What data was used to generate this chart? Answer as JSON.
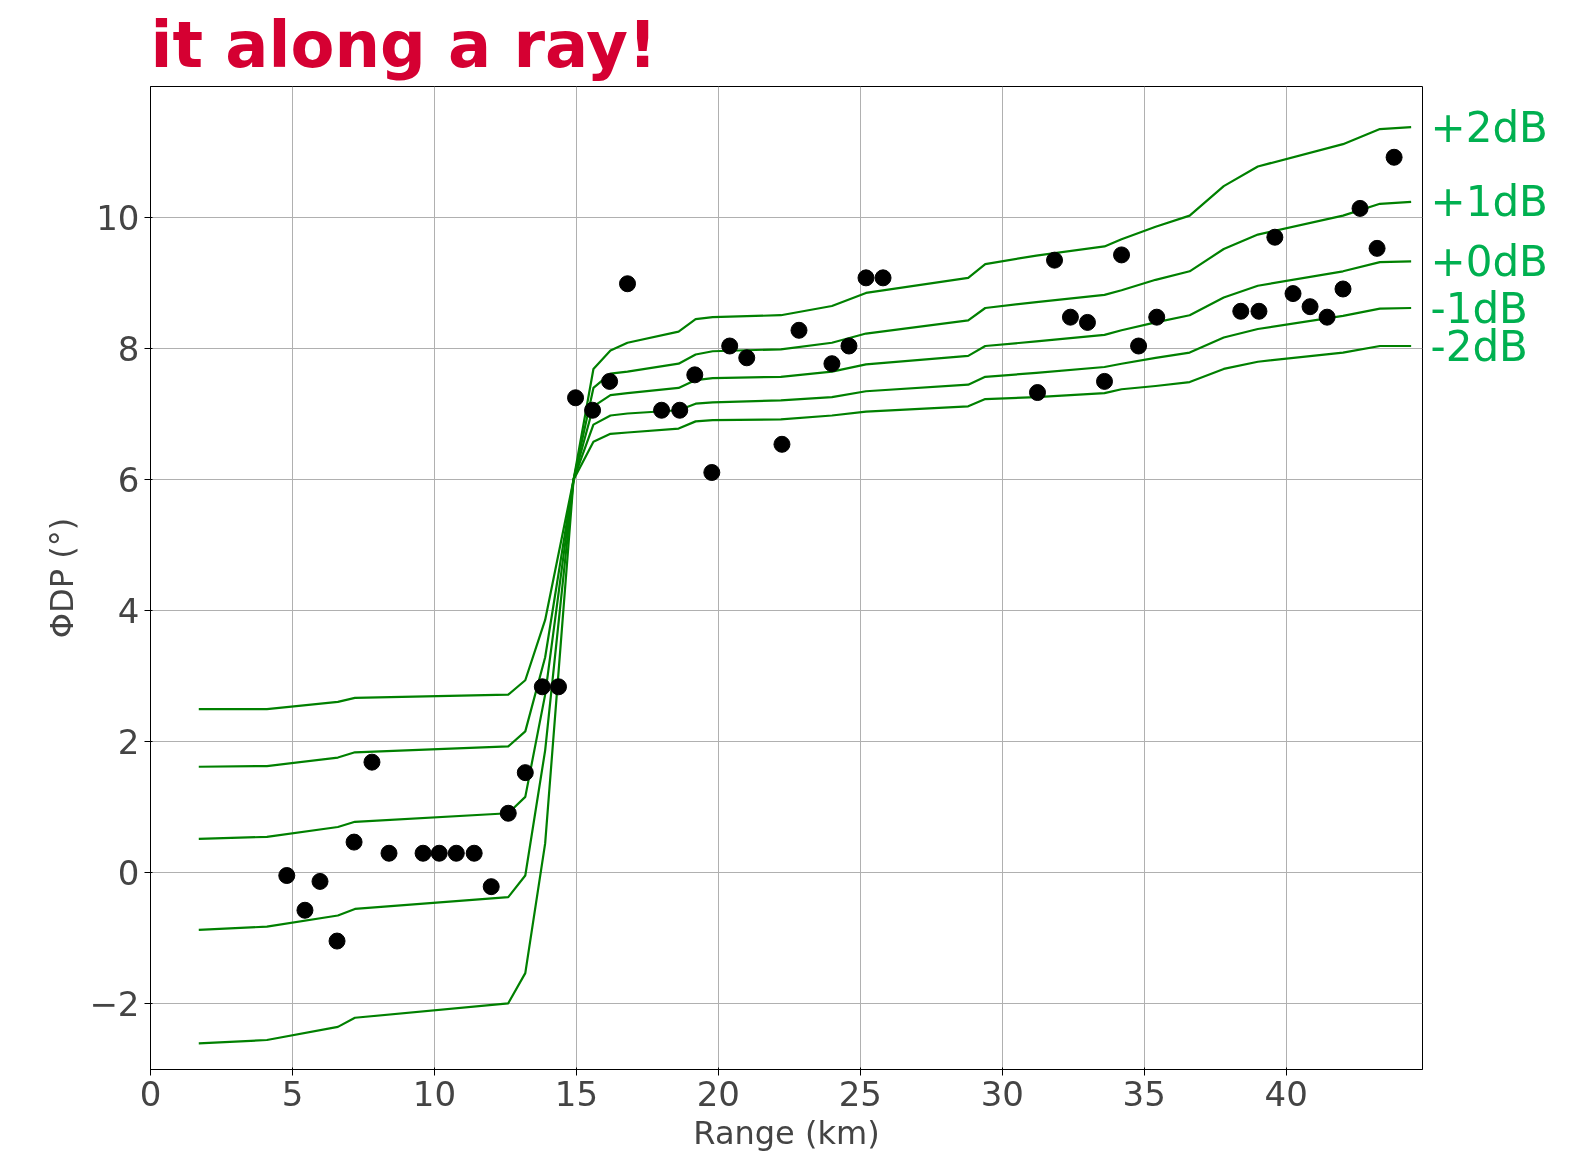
{
  "chart_data": {
    "type": "line",
    "title": "it along a ray!",
    "xlabel": "Range (km)",
    "ylabel": "ΦDP (°)",
    "xlim": [
      0,
      44.8
    ],
    "ylim": [
      -3,
      12
    ],
    "xticks": [
      0,
      5,
      10,
      15,
      20,
      25,
      30,
      35,
      40
    ],
    "yticks": [
      -2,
      0,
      2,
      4,
      6,
      8,
      10
    ],
    "grid": true,
    "line_style": "solid",
    "series": [
      {
        "name": "+2dB",
        "color": "#008000",
        "x": [
          1.7,
          4.1,
          6.6,
          7.2,
          12.6,
          13.2,
          13.9,
          14.9,
          15.6,
          16.2,
          16.8,
          18.6,
          19.2,
          19.8,
          22.2,
          24,
          25.2,
          28.8,
          29.4,
          31.2,
          33.6,
          34.2,
          35.4,
          36.6,
          37.8,
          39,
          42,
          43.3,
          44.4
        ],
        "values": [
          2.5,
          2.5,
          2.61,
          2.67,
          2.72,
          2.94,
          3.86,
          6.0,
          7.69,
          7.97,
          8.09,
          8.26,
          8.45,
          8.48,
          8.51,
          8.65,
          8.85,
          9.08,
          9.29,
          9.42,
          9.56,
          9.67,
          9.86,
          10.03,
          10.48,
          10.78,
          11.12,
          11.35,
          11.38
        ]
      },
      {
        "name": "+1dB",
        "color": "#008000",
        "x": [
          1.7,
          4.1,
          6.6,
          7.2,
          12.6,
          13.2,
          13.9,
          14.9,
          15.6,
          16.2,
          16.8,
          18.6,
          19.2,
          19.8,
          22.2,
          24,
          25.2,
          28.8,
          29.4,
          31.2,
          33.6,
          34.2,
          35.4,
          36.6,
          37.8,
          39,
          42,
          43.3,
          44.4
        ],
        "values": [
          1.62,
          1.63,
          1.76,
          1.84,
          1.93,
          2.16,
          3.29,
          6.0,
          7.4,
          7.62,
          7.65,
          7.77,
          7.91,
          7.96,
          7.99,
          8.09,
          8.23,
          8.43,
          8.62,
          8.71,
          8.82,
          8.89,
          9.05,
          9.18,
          9.52,
          9.74,
          10.03,
          10.21,
          10.24
        ]
      },
      {
        "name": "+0dB",
        "color": "#008000",
        "x": [
          1.7,
          4.1,
          6.6,
          7.2,
          12.6,
          13.2,
          13.9,
          14.9,
          15.6,
          16.2,
          16.8,
          18.6,
          19.2,
          19.8,
          22.2,
          24,
          25.2,
          28.8,
          29.4,
          31.2,
          33.6,
          34.2,
          35.4,
          36.6,
          37.8,
          39,
          42,
          43.3,
          44.4
        ],
        "values": [
          0.52,
          0.55,
          0.7,
          0.78,
          0.91,
          1.16,
          2.72,
          6.0,
          7.12,
          7.29,
          7.32,
          7.4,
          7.52,
          7.55,
          7.57,
          7.65,
          7.76,
          7.89,
          8.04,
          8.11,
          8.21,
          8.28,
          8.4,
          8.51,
          8.78,
          8.96,
          9.18,
          9.32,
          9.33
        ]
      },
      {
        "name": "-1dB",
        "color": "#008000",
        "x": [
          1.7,
          4.1,
          6.6,
          7.2,
          12.6,
          13.2,
          13.9,
          14.9,
          15.6,
          16.2,
          16.8,
          18.6,
          19.2,
          19.8,
          22.2,
          24,
          25.2,
          28.8,
          29.4,
          31.2,
          33.6,
          34.2,
          35.4,
          36.6,
          37.8,
          39,
          42,
          43.3,
          44.4
        ],
        "values": [
          -0.87,
          -0.82,
          -0.65,
          -0.55,
          -0.37,
          -0.04,
          1.87,
          6.0,
          6.84,
          6.98,
          7.01,
          7.06,
          7.16,
          7.18,
          7.21,
          7.26,
          7.35,
          7.45,
          7.57,
          7.63,
          7.72,
          7.77,
          7.86,
          7.94,
          8.17,
          8.3,
          8.5,
          8.61,
          8.62
        ]
      },
      {
        "name": "-2dB",
        "color": "#008000",
        "x": [
          1.7,
          4.1,
          6.6,
          7.2,
          12.6,
          13.2,
          13.9,
          14.9,
          15.6,
          16.2,
          16.8,
          18.6,
          19.2,
          19.8,
          22.2,
          24,
          25.2,
          28.8,
          29.4,
          31.2,
          33.6,
          34.2,
          35.4,
          36.6,
          37.8,
          39,
          42,
          43.3,
          44.4
        ],
        "values": [
          -2.6,
          -2.55,
          -2.35,
          -2.21,
          -1.99,
          -1.53,
          0.45,
          6.0,
          6.58,
          6.7,
          6.72,
          6.78,
          6.89,
          6.91,
          6.92,
          6.98,
          7.04,
          7.12,
          7.23,
          7.26,
          7.32,
          7.38,
          7.43,
          7.49,
          7.69,
          7.8,
          7.94,
          8.04,
          8.04
        ]
      },
      {
        "type": "scatter",
        "marker": "circle",
        "color": "#000000",
        "x": [
          4.8,
          5.44,
          5.97,
          6.57,
          7.17,
          7.8,
          8.4,
          9.6,
          10.17,
          10.77,
          11.4,
          12.0,
          12.6,
          13.2,
          13.8,
          14.37,
          14.97,
          15.57,
          16.17,
          16.8,
          18.0,
          18.64,
          19.17,
          19.77,
          20.4,
          21.0,
          22.24,
          22.84,
          24.0,
          24.6,
          25.2,
          25.8,
          31.24,
          31.84,
          32.4,
          33.0,
          33.6,
          34.2,
          34.8,
          35.44,
          38.4,
          39.04,
          39.6,
          40.24,
          40.84,
          41.44,
          42.0,
          42.6,
          43.2,
          43.8
        ],
        "values": [
          -0.04,
          -0.57,
          -0.13,
          -1.04,
          0.47,
          1.69,
          0.3,
          0.3,
          0.3,
          0.3,
          0.3,
          -0.21,
          0.91,
          1.53,
          2.84,
          2.84,
          7.25,
          7.06,
          7.5,
          8.99,
          7.06,
          7.06,
          7.6,
          6.11,
          8.04,
          7.86,
          6.54,
          8.28,
          7.77,
          8.04,
          9.08,
          9.08,
          7.33,
          9.35,
          8.48,
          8.4,
          7.5,
          9.43,
          8.04,
          8.48,
          8.57,
          8.57,
          9.7,
          8.84,
          8.64,
          8.48,
          8.91,
          10.14,
          9.53,
          10.92
        ]
      }
    ]
  }
}
